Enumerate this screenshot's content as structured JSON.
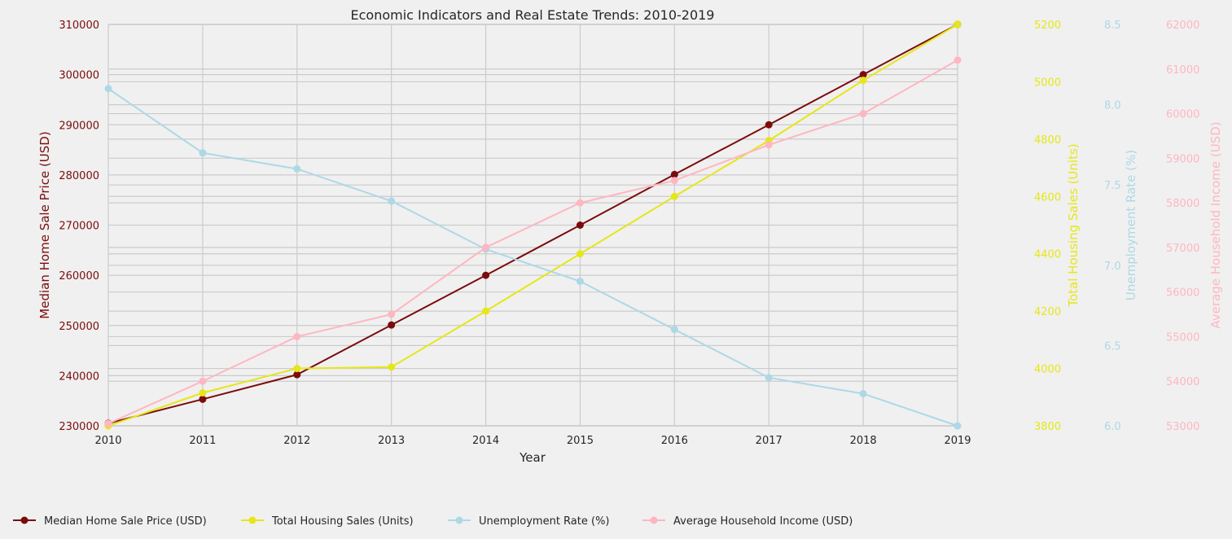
{
  "chart_data": {
    "type": "line",
    "title": "Economic Indicators and Real Estate Trends: 2010-2019",
    "xlabel": "Year",
    "x": [
      2010,
      2011,
      2012,
      2013,
      2014,
      2015,
      2016,
      2017,
      2018,
      2019
    ],
    "xlim": [
      2010,
      2019
    ],
    "grid": true,
    "legend_position": "bottom",
    "series": [
      {
        "name": "Median Home Sale Price (USD)",
        "axis_label": "Median Home Sale Price (USD)",
        "color": "#7b0c0c",
        "ylim": [
          230000,
          310000
        ],
        "ticks": [
          230000,
          240000,
          250000,
          260000,
          270000,
          280000,
          290000,
          300000,
          310000
        ],
        "tick_labels": [
          "230000",
          "240000",
          "250000",
          "260000",
          "270000",
          "280000",
          "290000",
          "300000",
          "310000"
        ],
        "values": [
          230500,
          235300,
          240200,
          250100,
          260000,
          270000,
          280100,
          290000,
          300000,
          310000
        ]
      },
      {
        "name": "Total Housing Sales (Units)",
        "axis_label": "Total Housing Sales (Units)",
        "color": "#e6e619",
        "ylim": [
          3800,
          5200
        ],
        "ticks": [
          3800,
          4000,
          4200,
          4400,
          4600,
          4800,
          5000,
          5200
        ],
        "tick_labels": [
          "3800",
          "4000",
          "4200",
          "4400",
          "4600",
          "4800",
          "5000",
          "5200"
        ],
        "values": [
          3800,
          3915,
          4000,
          4005,
          4200,
          4400,
          4600,
          4795,
          5005,
          5200
        ]
      },
      {
        "name": "Unemployment Rate (%)",
        "axis_label": "Unemployment Rate (%)",
        "color": "#add8e6",
        "ylim": [
          6.0,
          8.5
        ],
        "ticks": [
          6.0,
          6.5,
          7.0,
          7.5,
          8.0,
          8.5
        ],
        "tick_labels": [
          "6.0",
          "6.5",
          "7.0",
          "7.5",
          "8.0",
          "8.5"
        ],
        "values": [
          8.1,
          7.7,
          7.6,
          7.4,
          7.1,
          6.9,
          6.6,
          6.3,
          6.2,
          6.0
        ]
      },
      {
        "name": "Average Household Income (USD)",
        "axis_label": "Average Household Income (USD)",
        "color": "#ffb6c1",
        "ylim": [
          53000,
          62000
        ],
        "ticks": [
          53000,
          54000,
          55000,
          56000,
          57000,
          58000,
          59000,
          60000,
          61000,
          62000
        ],
        "tick_labels": [
          "53000",
          "54000",
          "55000",
          "56000",
          "57000",
          "58000",
          "59000",
          "60000",
          "61000",
          "62000"
        ],
        "values": [
          53050,
          54000,
          55000,
          55500,
          57000,
          58000,
          58500,
          59300,
          60000,
          61200
        ]
      }
    ]
  }
}
